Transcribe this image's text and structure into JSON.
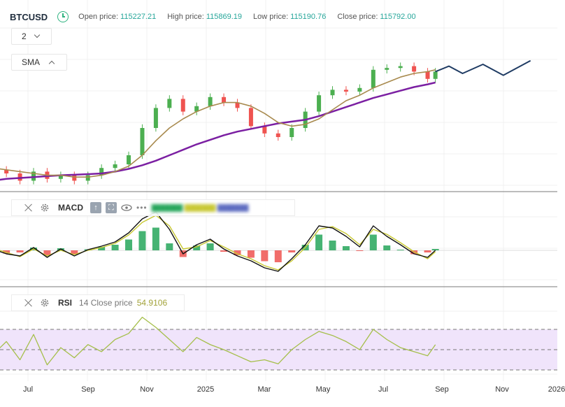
{
  "header": {
    "symbol": "BTCUSD",
    "open_label": "Open price:",
    "open_value": "115227.21",
    "high_label": "High price:",
    "high_value": "115869.19",
    "low_label": "Low price:",
    "low_value": "115190.76",
    "close_label": "Close price:",
    "close_value": "115792.00"
  },
  "interval": {
    "value": "2"
  },
  "sma_indicator": {
    "label": "SMA"
  },
  "macd_panel": {
    "label": "MACD"
  },
  "rsi_panel": {
    "label": "RSI",
    "params": "14 Close price",
    "value": "54.9106"
  },
  "colors": {
    "up": "#4caf50",
    "down": "#ef5350",
    "sma_fast": "#a88a4e",
    "sma_slow": "#7b1fa2",
    "forecast": "#1f3b63",
    "macd_line": "#111111",
    "signal_line": "#c8c832",
    "hist_pos": "#26a65b",
    "hist_neg": "#ef5350",
    "rsi_line": "#a5bf4a",
    "rsi_band": "#f0e4fb"
  },
  "chart_data": [
    {
      "type": "candlestick",
      "x": [
        "2024-06-10",
        "2024-06-24",
        "2024-07-08",
        "2024-07-22",
        "2024-08-05",
        "2024-08-19",
        "2024-09-02",
        "2024-09-16",
        "2024-09-30",
        "2024-10-14",
        "2024-10-28",
        "2024-11-11",
        "2024-11-25",
        "2024-12-09",
        "2024-12-23",
        "2025-01-06",
        "2025-01-20",
        "2025-02-03",
        "2025-02-17",
        "2025-03-03",
        "2025-03-17",
        "2025-03-31",
        "2025-04-14",
        "2025-04-28",
        "2025-05-12",
        "2025-05-26",
        "2025-06-09",
        "2025-06-23",
        "2025-07-07",
        "2025-07-21",
        "2025-08-04",
        "2025-08-18",
        "2025-09-01",
        "2025-09-09"
      ],
      "close": [
        62,
        60,
        56,
        61,
        57,
        59,
        56,
        59,
        63,
        65,
        70,
        85,
        96,
        101,
        94,
        97,
        102,
        99,
        96,
        86,
        82,
        80,
        85,
        94,
        103,
        106,
        105,
        107,
        117,
        118,
        119,
        116,
        112,
        116
      ],
      "sma_fast": [
        63,
        62,
        61,
        60,
        59,
        59,
        58,
        58,
        59,
        61,
        64,
        70,
        78,
        85,
        90,
        94,
        97,
        99,
        99,
        97,
        93,
        88,
        86,
        87,
        90,
        95,
        100,
        103,
        107,
        110,
        113,
        115,
        116,
        117
      ],
      "sma_slow": [
        56,
        57,
        57.5,
        58,
        58.5,
        59,
        59.3,
        59.6,
        60,
        61,
        62.5,
        64.5,
        67,
        70,
        73,
        76,
        78.5,
        81,
        83,
        84.5,
        86,
        87.5,
        88.5,
        89.5,
        91.5,
        94,
        96.5,
        99,
        101.5,
        103.5,
        105.5,
        107.5,
        109,
        110
      ],
      "forecast": {
        "x": [
          "2025-09-09",
          "2025-09-23",
          "2025-10-07",
          "2025-10-28",
          "2025-11-18",
          "2025-12-16"
        ],
        "y": [
          116,
          119,
          115,
          120,
          114,
          122
        ]
      }
    },
    {
      "type": "line",
      "name": "MACD",
      "x": [
        "2024-06-10",
        "2024-06-24",
        "2024-07-08",
        "2024-07-22",
        "2024-08-05",
        "2024-08-19",
        "2024-09-02",
        "2024-09-16",
        "2024-09-30",
        "2024-10-14",
        "2024-10-28",
        "2024-11-11",
        "2024-11-25",
        "2024-12-09",
        "2024-12-23",
        "2025-01-06",
        "2025-01-20",
        "2025-02-03",
        "2025-02-17",
        "2025-03-03",
        "2025-03-17",
        "2025-03-31",
        "2025-04-14",
        "2025-04-28",
        "2025-05-12",
        "2025-05-26",
        "2025-06-09",
        "2025-06-23",
        "2025-07-07",
        "2025-07-21",
        "2025-08-04",
        "2025-08-18",
        "2025-09-01",
        "2025-09-09"
      ],
      "macd": [
        0.2,
        -0.5,
        -0.8,
        0.4,
        -1.0,
        0.2,
        -0.8,
        0.1,
        0.6,
        1.2,
        2.5,
        4.5,
        5.5,
        3.0,
        -0.5,
        0.8,
        1.6,
        0.2,
        -0.8,
        -1.5,
        -2.5,
        -3.0,
        -1.2,
        0.8,
        3.5,
        3.2,
        2.0,
        0.5,
        3.5,
        2.0,
        0.8,
        -0.5,
        -1.0,
        0.0
      ],
      "signal": [
        0.3,
        -0.3,
        -0.9,
        0.2,
        -0.8,
        0.0,
        -0.6,
        0.0,
        0.4,
        1.0,
        2.2,
        4.0,
        5.0,
        3.5,
        0.2,
        0.5,
        1.4,
        0.5,
        -0.5,
        -1.2,
        -2.2,
        -2.8,
        -1.5,
        0.4,
        3.0,
        3.4,
        2.4,
        0.8,
        3.0,
        2.3,
        1.1,
        -0.2,
        -1.2,
        -0.2
      ],
      "ylim": [
        -5,
        5
      ]
    },
    {
      "type": "line",
      "name": "RSI",
      "x": [
        "2024-06-10",
        "2024-06-24",
        "2024-07-08",
        "2024-07-22",
        "2024-08-05",
        "2024-08-19",
        "2024-09-02",
        "2024-09-16",
        "2024-09-30",
        "2024-10-14",
        "2024-10-28",
        "2024-11-11",
        "2024-11-25",
        "2024-12-09",
        "2024-12-23",
        "2025-01-06",
        "2025-01-20",
        "2025-02-03",
        "2025-02-17",
        "2025-03-03",
        "2025-03-17",
        "2025-03-31",
        "2025-04-14",
        "2025-04-28",
        "2025-05-12",
        "2025-05-26",
        "2025-06-09",
        "2025-06-23",
        "2025-07-07",
        "2025-07-21",
        "2025-08-04",
        "2025-08-18",
        "2025-09-01",
        "2025-09-09"
      ],
      "values": [
        45,
        58,
        40,
        65,
        35,
        52,
        42,
        55,
        48,
        60,
        66,
        82,
        72,
        60,
        48,
        62,
        55,
        50,
        44,
        38,
        40,
        36,
        50,
        60,
        68,
        64,
        58,
        50,
        70,
        60,
        52,
        48,
        44,
        54.9
      ],
      "levels": [
        70,
        50,
        30
      ],
      "ylim": [
        15,
        95
      ]
    }
  ],
  "xaxis": {
    "ticks": [
      "Jul",
      "Sep",
      "Nov",
      "2025",
      "Mar",
      "May",
      "Jul",
      "Sep",
      "Nov",
      "2026"
    ]
  }
}
